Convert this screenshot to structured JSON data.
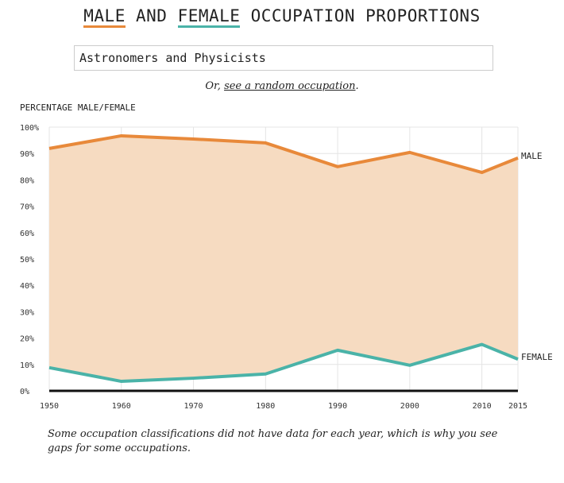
{
  "title": {
    "part1": "MALE",
    "and": " AND ",
    "part2": "FEMALE",
    "rest": " OCCUPATION PROPORTIONS"
  },
  "selector": {
    "value": "Astronomers and Physicists"
  },
  "random": {
    "prefix": "Or, ",
    "link": "see a random occupation",
    "suffix": "."
  },
  "footnote": "Some occupation classifications did not have data for each year, which is why you see gaps for some occupations.",
  "colors": {
    "male": "#e8893a",
    "female": "#4ab3a8",
    "fill": "#f6dbc1"
  },
  "chart_data": {
    "type": "line",
    "ylabel": "PERCENTAGE MALE/FEMALE",
    "x": [
      1950,
      1960,
      1970,
      1980,
      1990,
      2000,
      2010,
      2015
    ],
    "xticks": [
      "1950",
      "1960",
      "1970",
      "1980",
      "1990",
      "2000",
      "2010",
      "2015"
    ],
    "yticks": [
      "0%",
      "10%",
      "20%",
      "30%",
      "40%",
      "50%",
      "60%",
      "70%",
      "80%",
      "90%",
      "100%"
    ],
    "ylim": [
      0,
      100
    ],
    "grid": true,
    "fill_between_series": true,
    "series": [
      {
        "name": "MALE",
        "values": [
          91.9,
          96.7,
          95.5,
          94.0,
          85.0,
          90.4,
          82.8,
          88.3
        ]
      },
      {
        "name": "FEMALE",
        "values": [
          8.8,
          3.6,
          4.8,
          6.4,
          15.4,
          9.7,
          17.6,
          12.0
        ]
      }
    ]
  }
}
